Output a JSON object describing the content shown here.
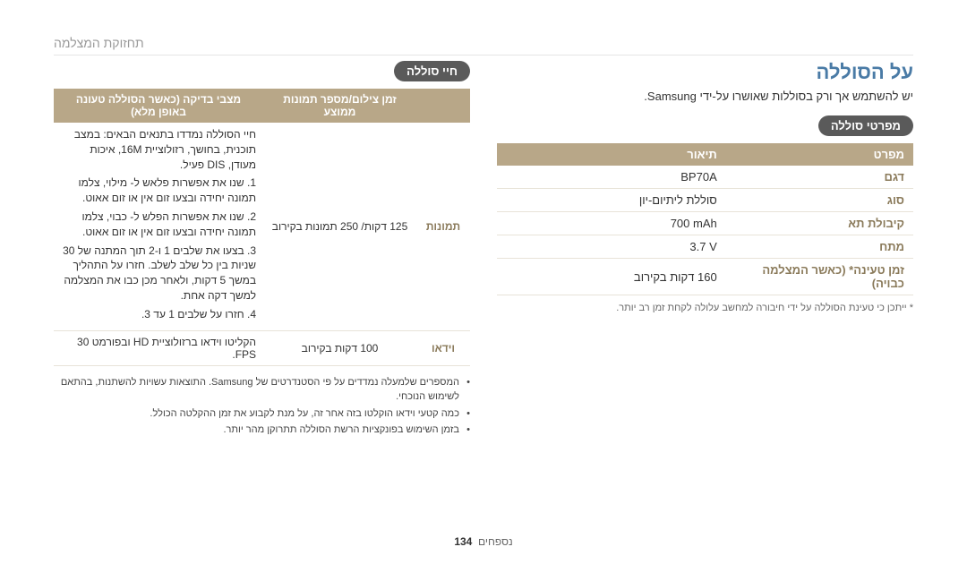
{
  "header": {
    "breadcrumb": "תחזוקת המצלמה"
  },
  "right": {
    "title": "על הסוללה",
    "intro": "יש להשתמש אך ורק בסוללות שאושרו על-ידי Samsung.",
    "spec_badge": "מפרטי סוללה",
    "spec_table": {
      "columns": [
        "מפרט",
        "תיאור"
      ],
      "rows": [
        {
          "label": "דגם",
          "value": "BP70A"
        },
        {
          "label": "סוג",
          "value": "סוללת ליתיום-יון"
        },
        {
          "label": "קיבולת תא",
          "value": "700 mAh"
        },
        {
          "label": "מתח",
          "value": "3.7 V"
        },
        {
          "label": "זמן טעינה* (כאשר המצלמה כבויה)",
          "value": "160 דקות בקירוב"
        }
      ]
    },
    "footnote": "* ייתכן כי טעינת הסוללה על ידי חיבורה למחשב עלולה לקחת זמן רב יותר."
  },
  "left": {
    "life_badge": "חיי סוללה",
    "life_table": {
      "columns": [
        "",
        "זמן צילום/מספר תמונות ממוצע",
        "מצבי בדיקה (כאשר הסוללה טעונה באופן מלא)"
      ],
      "photos": {
        "rowhead": "תמונות",
        "mid": "125 דקות/\n250 תמונות בקירוב",
        "pre": "חיי הסוללה נמדדו בתנאים הבאים: במצב תוכנית, בחושך, רזולוציית 16M, איכות מעודן, DIS פעיל.",
        "steps": [
          "1. שנו את אפשרות פלאש ל- מילוי, צלמו תמונה יחידה ובצעו זום אין או זום אאוט.",
          "2. שנו את אפשרות הפלש ל- כבוי, צלמו תמונה יחידה ובצעו זום אין או זום אאוט.",
          "3. בצעו את שלבים 1 ו-2 תוך המתנה של 30 שניות בין כל שלב לשלב. חזרו על התהליך במשך 5 דקות, ולאחר מכן כבו את המצלמה למשך דקה אחת.",
          "4. חזרו על שלבים 1 עד 3."
        ]
      },
      "video": {
        "rowhead": "וידאו",
        "mid": "100 דקות בקירוב",
        "cond": "הקליטו וידאו ברזולוציית HD ובפורמט 30 FPS."
      }
    },
    "bullets": [
      "המספרים שלמעלה נמדדים על פי הסטנדרטים של Samsung. התוצאות עשויות להשתנות, בהתאם לשימוש הנוכחי.",
      "כמה קטעי וידאו הוקלטו בזה אחר זה, על מנת לקבוע את זמן ההקלטה הכולל.",
      "בזמן השימוש בפונקציות הרשת הסוללה תתרוקן מהר יותר."
    ]
  },
  "footer": {
    "section": "נספחים",
    "page": "134"
  }
}
